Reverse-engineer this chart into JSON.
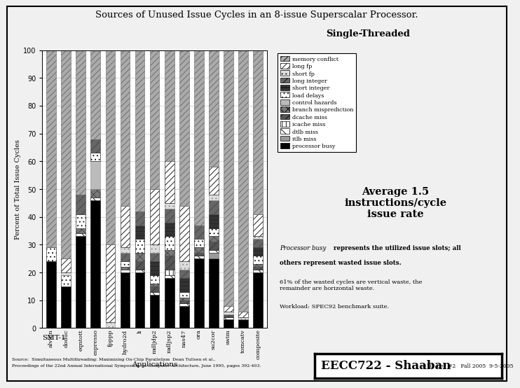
{
  "title": "Sources of Unused Issue Cycles in an 8-issue Superscalar Processor.",
  "subtitle": "Single-Threaded",
  "ylabel": "Percent of Total Issue Cycles",
  "xlabel": "Applications",
  "smt_label": "SMT-1",
  "avg_text": "Average 1.5\ninstructions/cycle\nissue rate",
  "note2": "61% of the wasted cycles are vertical waste, the\nremainder are horizontal waste.",
  "note3": "Workload: SPEC92 benchmark suite.",
  "source_line1": "Source:  Simultaneous Multithreading: Maximizing On-Chip Parallelism  Dean Tullsen et al.,",
  "source_line2": "Proceedings of the 22nd Annual International Symposium on Computer Architecture, June 1995, pages 392-403.",
  "footer_right": "#10  Lec #2   Fall 2005  9-5-2005",
  "eecc_text": "EECC722 - Shaaban",
  "categories": [
    "alvinn",
    "doduc",
    "eqntott",
    "espresso",
    "fpppp",
    "hydro2d",
    "li",
    "mdljdp2",
    "mdljsp2",
    "nas47",
    "ora",
    "su2cor",
    "swim",
    "tomcatv",
    "composite"
  ],
  "legend_labels": [
    "memory conflict",
    "long fp",
    "short fp",
    "long integer",
    "short integer",
    "load delays",
    "control hazards",
    "branch misprediction",
    "dcache miss",
    "icache miss",
    "dtlb miss",
    "itlb miss",
    "processor busy"
  ],
  "data": {
    "processor_busy": [
      24,
      15,
      33,
      46,
      0,
      20,
      20,
      12,
      18,
      8,
      25,
      25,
      3,
      3,
      20
    ],
    "itlb_miss": [
      0,
      0,
      0,
      0,
      0,
      0,
      0,
      0,
      0,
      0,
      0,
      2,
      0,
      0,
      0
    ],
    "dtlb_miss": [
      0,
      0,
      1,
      1,
      0,
      1,
      1,
      1,
      1,
      1,
      1,
      1,
      1,
      0,
      1
    ],
    "icache_miss": [
      0,
      0,
      0,
      0,
      0,
      0,
      0,
      0,
      2,
      0,
      0,
      0,
      0,
      0,
      0
    ],
    "dcache_miss": [
      0,
      0,
      0,
      0,
      0,
      0,
      3,
      2,
      5,
      1,
      1,
      3,
      1,
      0,
      1
    ],
    "branch_misprediction": [
      0,
      0,
      2,
      3,
      0,
      1,
      3,
      1,
      2,
      1,
      2,
      2,
      0,
      0,
      1
    ],
    "control_hazards": [
      0,
      0,
      0,
      10,
      0,
      0,
      0,
      0,
      0,
      0,
      0,
      0,
      0,
      0,
      0
    ],
    "load_delays": [
      5,
      4,
      5,
      3,
      0,
      2,
      5,
      3,
      5,
      2,
      3,
      3,
      0,
      0,
      3
    ],
    "short_integer": [
      0,
      0,
      0,
      0,
      0,
      0,
      5,
      5,
      5,
      5,
      0,
      5,
      0,
      0,
      3
    ],
    "long_integer": [
      0,
      0,
      7,
      5,
      0,
      3,
      5,
      3,
      5,
      3,
      5,
      5,
      0,
      0,
      3
    ],
    "short_fp": [
      0,
      1,
      0,
      0,
      2,
      2,
      0,
      3,
      2,
      3,
      0,
      2,
      1,
      1,
      1
    ],
    "long_fp": [
      0,
      5,
      0,
      0,
      28,
      15,
      0,
      20,
      15,
      20,
      0,
      10,
      2,
      2,
      8
    ],
    "memory_conflict": [
      71,
      75,
      52,
      32,
      70,
      56,
      58,
      50,
      40,
      56,
      63,
      42,
      92,
      94,
      59
    ]
  },
  "ylim": [
    0,
    100
  ],
  "bg_color": "#f0f0f0",
  "plot_bg": "#ffffff",
  "bar_width": 0.65
}
